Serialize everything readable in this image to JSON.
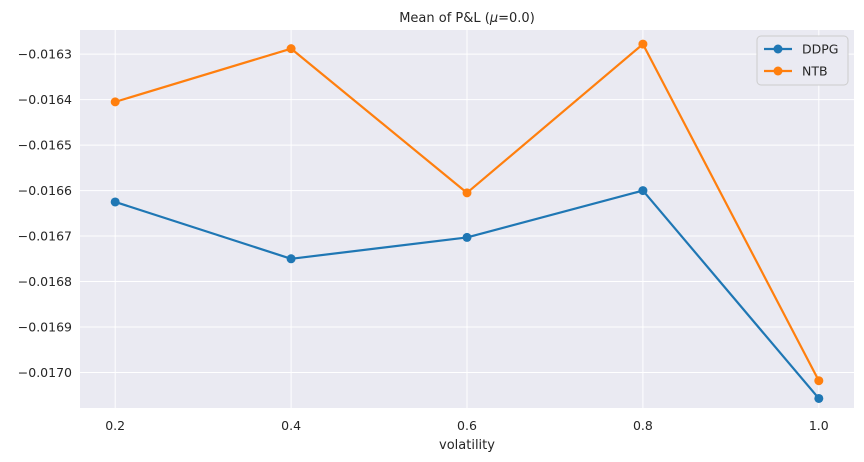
{
  "chart_data": {
    "type": "line",
    "title_prefix": "Mean of P&L (",
    "title_mu": "μ",
    "title_suffix": "=0.0)",
    "xlabel": "volatility",
    "ylabel": "",
    "x": [
      0.2,
      0.4,
      0.6,
      0.8,
      1.0
    ],
    "x_tick_labels": [
      "0.2",
      "0.4",
      "0.6",
      "0.8",
      "1.0"
    ],
    "y_ticks": [
      -0.0163,
      -0.0164,
      -0.0165,
      -0.0166,
      -0.0167,
      -0.0168,
      -0.0169,
      -0.017
    ],
    "y_tick_labels": [
      "−0.0163",
      "−0.0164",
      "−0.0165",
      "−0.0166",
      "−0.0167",
      "−0.0168",
      "−0.0169",
      "−0.0170"
    ],
    "xlim": [
      0.16,
      1.04
    ],
    "ylim": [
      -0.017078,
      -0.016247
    ],
    "grid": true,
    "legend_position": "top-right",
    "series": [
      {
        "name": "DDPG",
        "color": "#1f77b4",
        "values": [
          -0.016625,
          -0.01675,
          -0.016703,
          -0.0166,
          -0.017057
        ]
      },
      {
        "name": "NTB",
        "color": "#ff7f0e",
        "values": [
          -0.016405,
          -0.016288,
          -0.016605,
          -0.016278,
          -0.017018
        ]
      }
    ]
  }
}
